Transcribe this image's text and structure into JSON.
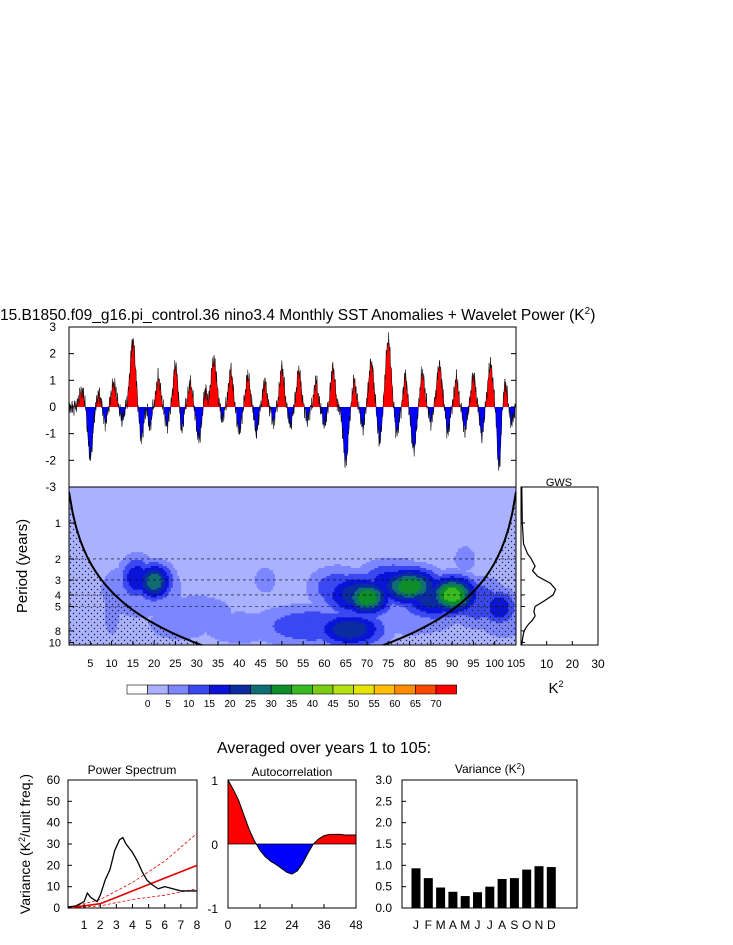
{
  "figure": {
    "title": "15.B1850.f09_g16.pi_control.36 nino3.4 Monthly SST Anomalies + Wavelet Power (K",
    "title_sup": "2",
    "title_close": ")",
    "section_title": "Averaged over years 1 to 105:"
  },
  "colors": {
    "positive": "#ff0000",
    "negative": "#0000ff",
    "contour_levels": [
      "#ffffff",
      "#aab2ff",
      "#7c86ff",
      "#3a48f2",
      "#0a14d8",
      "#0a2ca0",
      "#0f6e74",
      "#0e8e2a",
      "#3aba22",
      "#7ccc14",
      "#b6e010",
      "#e6e400",
      "#ffbe00",
      "#ff8c00",
      "#ff4800",
      "#ff0000"
    ]
  },
  "chart_data": [
    {
      "id": "sst_timeseries",
      "type": "area",
      "x_range": [
        0,
        105
      ],
      "ylim": [
        -3,
        3
      ],
      "y_ticks": [
        "3",
        "2",
        "1",
        "0",
        "-1",
        "-2",
        "-3"
      ],
      "events": [
        [
          3.0,
          0.6,
          0.9
        ],
        [
          5.0,
          -1.9,
          0.8
        ],
        [
          7.0,
          0.5,
          0.7
        ],
        [
          8.5,
          -0.6,
          0.6
        ],
        [
          10.5,
          0.9,
          0.8
        ],
        [
          12.5,
          -0.5,
          0.6
        ],
        [
          15.0,
          2.5,
          0.9
        ],
        [
          17.0,
          -1.2,
          0.7
        ],
        [
          19.0,
          -0.8,
          0.5
        ],
        [
          21.0,
          1.1,
          0.7
        ],
        [
          23.0,
          -0.7,
          0.6
        ],
        [
          25.0,
          1.6,
          0.7
        ],
        [
          26.5,
          -0.9,
          0.5
        ],
        [
          28.5,
          0.9,
          0.7
        ],
        [
          30.5,
          -1.2,
          0.8
        ],
        [
          32.0,
          0.7,
          0.5
        ],
        [
          34.0,
          1.8,
          0.9
        ],
        [
          36.0,
          -0.5,
          0.5
        ],
        [
          38.0,
          1.4,
          0.7
        ],
        [
          40.0,
          -0.9,
          0.7
        ],
        [
          42.0,
          1.2,
          0.7
        ],
        [
          44.0,
          -1.0,
          0.6
        ],
        [
          46.0,
          1.0,
          0.6
        ],
        [
          48.0,
          -0.6,
          0.5
        ],
        [
          50.0,
          1.5,
          0.7
        ],
        [
          52.0,
          -0.7,
          0.6
        ],
        [
          54.0,
          1.4,
          0.7
        ],
        [
          56.0,
          -0.5,
          0.5
        ],
        [
          58.0,
          1.0,
          0.6
        ],
        [
          60.0,
          -0.7,
          0.6
        ],
        [
          62.0,
          1.5,
          0.7
        ],
        [
          65.0,
          -2.1,
          0.8
        ],
        [
          67.0,
          1.0,
          0.6
        ],
        [
          69.0,
          -0.8,
          0.6
        ],
        [
          71.0,
          1.7,
          0.8
        ],
        [
          73.0,
          -1.3,
          0.7
        ],
        [
          75.0,
          2.5,
          0.9
        ],
        [
          77.0,
          -1.0,
          0.7
        ],
        [
          79.0,
          1.2,
          0.6
        ],
        [
          81.0,
          -1.6,
          0.8
        ],
        [
          83.0,
          1.3,
          0.7
        ],
        [
          85.0,
          -0.6,
          0.5
        ],
        [
          87.0,
          1.6,
          0.8
        ],
        [
          89.0,
          -1.0,
          0.6
        ],
        [
          91.0,
          1.1,
          0.6
        ],
        [
          93.0,
          -0.9,
          0.6
        ],
        [
          95.0,
          1.2,
          0.7
        ],
        [
          97.0,
          -1.1,
          0.6
        ],
        [
          99.0,
          1.6,
          0.8
        ],
        [
          101.0,
          -2.3,
          0.6
        ],
        [
          102.5,
          0.9,
          0.6
        ],
        [
          104.0,
          -0.6,
          0.6
        ]
      ]
    },
    {
      "id": "wavelet_power",
      "type": "heatmap",
      "ylabel": "Period (years)",
      "x_range": [
        0,
        105
      ],
      "x_ticks": [
        "5",
        "10",
        "15",
        "20",
        "25",
        "30",
        "35",
        "40",
        "45",
        "50",
        "55",
        "60",
        "65",
        "70",
        "75",
        "80",
        "85",
        "90",
        "95",
        "100",
        "105"
      ],
      "x_tick_values": [
        5,
        10,
        15,
        20,
        25,
        30,
        35,
        40,
        45,
        50,
        55,
        60,
        65,
        70,
        75,
        80,
        85,
        90,
        95,
        100,
        105
      ],
      "y_ticks": [
        "1",
        "2",
        "3",
        "4",
        "5",
        "8",
        "10"
      ],
      "y_tick_values": [
        1,
        2,
        3,
        4,
        5,
        8,
        10
      ],
      "period_range": [
        0.5,
        10.5
      ],
      "dashed_periods": [
        2,
        3,
        4,
        5
      ],
      "background_level": 1,
      "blobs": [
        [
          10,
          5,
          1.5,
          0.45,
          2
        ],
        [
          16,
          2.9,
          3,
          0.3,
          4
        ],
        [
          17,
          3.6,
          8,
          0.45,
          2
        ],
        [
          20,
          3.1,
          3,
          0.25,
          6
        ],
        [
          30,
          5.8,
          7,
          0.3,
          2
        ],
        [
          40,
          7.5,
          7,
          0.25,
          2
        ],
        [
          57,
          7.3,
          10,
          0.3,
          3
        ],
        [
          66,
          7.8,
          6,
          0.25,
          5
        ],
        [
          63,
          3.5,
          5,
          0.3,
          3
        ],
        [
          68,
          4.0,
          6,
          0.3,
          5
        ],
        [
          70,
          4.2,
          4,
          0.25,
          7
        ],
        [
          76,
          3.2,
          6,
          0.3,
          4
        ],
        [
          80,
          3.4,
          5,
          0.25,
          7
        ],
        [
          86,
          4.2,
          6,
          0.3,
          5
        ],
        [
          90,
          4.0,
          4,
          0.25,
          8
        ],
        [
          96,
          4.6,
          5,
          0.35,
          3
        ],
        [
          101,
          5.1,
          3,
          0.25,
          4
        ],
        [
          102,
          6.3,
          5,
          0.3,
          2
        ],
        [
          26,
          7.0,
          6,
          0.25,
          2
        ],
        [
          80,
          6.0,
          10,
          0.3,
          2
        ],
        [
          46,
          3.0,
          2,
          0.2,
          2
        ],
        [
          93,
          2.0,
          2,
          0.2,
          2
        ]
      ]
    },
    {
      "id": "global_wavelet_spectrum",
      "type": "line",
      "title": "GWS",
      "xlabel": "K",
      "xlabel_sup": "2",
      "x_ticks": [
        "10",
        "20",
        "30"
      ],
      "x_tick_values": [
        10,
        20,
        30
      ],
      "xlim": [
        0,
        30
      ],
      "period": [
        0.5,
        1.0,
        1.5,
        1.8,
        2.0,
        2.3,
        2.5,
        2.8,
        3.2,
        3.6,
        4.0,
        4.5,
        5.0,
        5.5,
        6.0,
        6.5,
        7.0,
        7.5,
        8.0,
        9.0,
        10.0,
        10.5
      ],
      "power": [
        0.3,
        0.5,
        1.0,
        2.5,
        4.0,
        5.5,
        4.5,
        6.5,
        11.5,
        13.5,
        12.5,
        9.0,
        5.5,
        5.0,
        5.5,
        4.5,
        3.0,
        2.0,
        1.2,
        0.7,
        0.4,
        0.3
      ]
    },
    {
      "id": "power_spectrum",
      "type": "line",
      "title": "Power Spectrum",
      "ylabel": "Variance (K",
      "ylabel_sup": "2",
      "ylabel_close": "/unit freq.)",
      "xlim": [
        0,
        8
      ],
      "ylim": [
        0,
        60
      ],
      "x_ticks": [
        "1",
        "2",
        "3",
        "4",
        "5",
        "6",
        "7",
        "8"
      ],
      "x_tick_values": [
        1,
        2,
        3,
        4,
        5,
        6,
        7,
        8
      ],
      "y_ticks": [
        "0",
        "10",
        "20",
        "30",
        "40",
        "50",
        "60"
      ],
      "y_tick_values": [
        0,
        10,
        20,
        30,
        40,
        50,
        60
      ],
      "x": [
        0,
        0.5,
        1.0,
        1.2,
        1.4,
        1.6,
        1.8,
        2.0,
        2.3,
        2.6,
        2.9,
        3.2,
        3.4,
        3.6,
        3.8,
        4.0,
        4.3,
        4.6,
        4.9,
        5.2,
        5.6,
        6.0,
        6.5,
        7.0,
        7.5,
        8.0
      ],
      "y": [
        0.5,
        1,
        3,
        7,
        5,
        4,
        3,
        6,
        13,
        18,
        27,
        32,
        33,
        30,
        28,
        26,
        22,
        17,
        13,
        11,
        9,
        10,
        9,
        8,
        8,
        8
      ],
      "red_noise_lines": [
        {
          "name": "upper",
          "style": "dashed",
          "x": [
            0,
            2,
            4,
            6,
            8
          ],
          "y": [
            0,
            4,
            12,
            22,
            35
          ]
        },
        {
          "name": "mean",
          "style": "solid",
          "x": [
            0,
            2,
            4,
            6,
            8
          ],
          "y": [
            0,
            2,
            8,
            14,
            20
          ]
        },
        {
          "name": "lower",
          "style": "dashed",
          "x": [
            0,
            2,
            4,
            6,
            8
          ],
          "y": [
            0,
            1,
            4,
            6,
            9
          ]
        }
      ]
    },
    {
      "id": "autocorrelation",
      "type": "area",
      "title": "Autocorrelation",
      "xlim": [
        0,
        48
      ],
      "ylim": [
        -1,
        1
      ],
      "x_ticks": [
        "0",
        "12",
        "24",
        "36",
        "48"
      ],
      "x_tick_values": [
        0,
        12,
        24,
        36,
        48
      ],
      "y_ticks": [
        "1",
        "0",
        "-1"
      ],
      "y_tick_values": [
        1,
        0,
        -1
      ],
      "lag": [
        0,
        2,
        4,
        6,
        8,
        10,
        12,
        14,
        16,
        18,
        20,
        22,
        24,
        26,
        28,
        30,
        32,
        34,
        36,
        38,
        40,
        42,
        44,
        46,
        48
      ],
      "acf": [
        1.0,
        0.85,
        0.68,
        0.45,
        0.22,
        0.04,
        -0.1,
        -0.2,
        -0.27,
        -0.32,
        -0.38,
        -0.44,
        -0.47,
        -0.42,
        -0.3,
        -0.14,
        0.0,
        0.08,
        0.13,
        0.15,
        0.15,
        0.15,
        0.14,
        0.14,
        0.14
      ]
    },
    {
      "id": "monthly_variance",
      "type": "bar",
      "title": "Variance (K",
      "title_sup": "2",
      "title_close": ")",
      "ylim": [
        0,
        3.0
      ],
      "y_ticks": [
        "3.0",
        "2.5",
        "2.0",
        "1.5",
        "1.0",
        "0.5",
        "0.0"
      ],
      "y_tick_values": [
        3.0,
        2.5,
        2.0,
        1.5,
        1.0,
        0.5,
        0.0
      ],
      "categories": [
        "J",
        "F",
        "M",
        "A",
        "M",
        "J",
        "J",
        "A",
        "S",
        "O",
        "N",
        "D"
      ],
      "values": [
        0.93,
        0.7,
        0.48,
        0.38,
        0.28,
        0.37,
        0.5,
        0.68,
        0.7,
        0.9,
        0.98,
        0.96
      ]
    }
  ],
  "colorbar": {
    "labels": [
      "0",
      "5",
      "10",
      "15",
      "20",
      "25",
      "30",
      "35",
      "40",
      "45",
      "50",
      "55",
      "60",
      "65",
      "70"
    ]
  }
}
